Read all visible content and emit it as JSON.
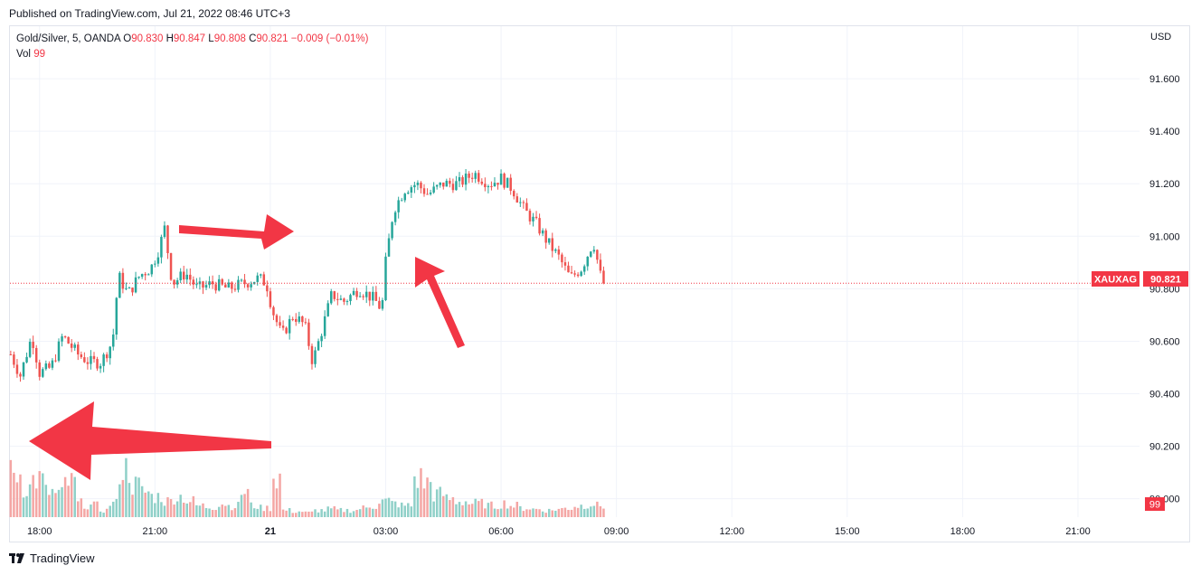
{
  "header": {
    "published": "Published on TradingView.com, Jul 21, 2022 08:46 UTC+3"
  },
  "legend": {
    "symbol": "Gold/Silver, 5, OANDA",
    "o_label": "O",
    "o_value": "90.830",
    "h_label": "H",
    "h_value": "90.847",
    "l_label": "L",
    "l_value": "90.808",
    "c_label": "C",
    "c_value": "90.821",
    "change": "−0.009 (−0.01%)",
    "vol_label": "Vol",
    "vol_value": "99"
  },
  "footer": {
    "brand": "TradingView"
  },
  "colors": {
    "up": "#26a69a",
    "down": "#ef5350",
    "vol_up": "#8fd0c8",
    "vol_down": "#f4a6a4",
    "arrow": "#f23645",
    "grid": "#f0f3fa",
    "price_line": "#f23645"
  },
  "chart_data": {
    "type": "candlestick",
    "symbol": "XAUXAG",
    "currency": "USD",
    "last_price": "90.821",
    "last_volume": "99",
    "y_ticks": [
      "91.600",
      "91.400",
      "91.200",
      "91.000",
      "90.800",
      "90.600",
      "90.400",
      "90.200",
      "90.000"
    ],
    "ylim": [
      89.93,
      91.8
    ],
    "x_ticks": [
      "18:00",
      "21:00",
      "21",
      "03:00",
      "06:00",
      "09:00",
      "12:00",
      "15:00",
      "18:00",
      "21:00"
    ],
    "x_tick_hours": [
      18,
      21,
      24,
      27,
      30,
      33,
      36,
      39,
      42,
      45
    ],
    "x_range_hours": [
      17.23,
      46.6
    ],
    "candle_interval_minutes": 5,
    "price_path": [
      [
        17.25,
        90.55
      ],
      [
        17.5,
        90.47
      ],
      [
        17.8,
        90.62
      ],
      [
        18.0,
        90.48
      ],
      [
        18.3,
        90.5
      ],
      [
        18.6,
        90.62
      ],
      [
        19.0,
        90.55
      ],
      [
        19.3,
        90.52
      ],
      [
        19.6,
        90.52
      ],
      [
        19.9,
        90.6
      ],
      [
        20.05,
        90.85
      ],
      [
        20.3,
        90.78
      ],
      [
        20.6,
        90.85
      ],
      [
        20.9,
        90.88
      ],
      [
        21.1,
        90.95
      ],
      [
        21.25,
        91.03
      ],
      [
        21.45,
        90.82
      ],
      [
        21.8,
        90.86
      ],
      [
        22.1,
        90.8
      ],
      [
        22.5,
        90.82
      ],
      [
        22.9,
        90.8
      ],
      [
        23.3,
        90.82
      ],
      [
        23.7,
        90.84
      ],
      [
        23.9,
        90.82
      ],
      [
        24.05,
        90.72
      ],
      [
        24.3,
        90.62
      ],
      [
        24.6,
        90.7
      ],
      [
        24.9,
        90.66
      ],
      [
        25.1,
        90.52
      ],
      [
        25.3,
        90.62
      ],
      [
        25.6,
        90.78
      ],
      [
        25.9,
        90.75
      ],
      [
        26.3,
        90.8
      ],
      [
        26.7,
        90.76
      ],
      [
        26.9,
        90.72
      ],
      [
        27.0,
        90.9
      ],
      [
        27.2,
        91.1
      ],
      [
        27.5,
        91.18
      ],
      [
        27.8,
        91.2
      ],
      [
        28.1,
        91.16
      ],
      [
        28.5,
        91.2
      ],
      [
        28.9,
        91.2
      ],
      [
        29.3,
        91.24
      ],
      [
        29.7,
        91.2
      ],
      [
        30.0,
        91.22
      ],
      [
        30.3,
        91.18
      ],
      [
        30.6,
        91.1
      ],
      [
        30.9,
        91.05
      ],
      [
        31.2,
        90.98
      ],
      [
        31.5,
        90.92
      ],
      [
        31.8,
        90.84
      ],
      [
        32.1,
        90.88
      ],
      [
        32.4,
        90.98
      ],
      [
        32.6,
        90.84
      ],
      [
        32.7,
        90.821
      ]
    ],
    "volume_levels": [
      0.38,
      0.26,
      0.33,
      0.22,
      0.2,
      0.3,
      0.12,
      0.1,
      0.06,
      0.12,
      0.42,
      0.28,
      0.22,
      0.18,
      0.14,
      0.18,
      0.14,
      0.1,
      0.09,
      0.12,
      0.1,
      0.22,
      0.1,
      0.08,
      0.36,
      0.06,
      0.05,
      0.04,
      0.06,
      0.07,
      0.06,
      0.06,
      0.08,
      0.1,
      0.14,
      0.12,
      0.1,
      0.34,
      0.3,
      0.2,
      0.16,
      0.14,
      0.12,
      0.12,
      0.1,
      0.12,
      0.1,
      0.08,
      0.07,
      0.06,
      0.07,
      0.08,
      0.1,
      0.12,
      0.1
    ]
  }
}
